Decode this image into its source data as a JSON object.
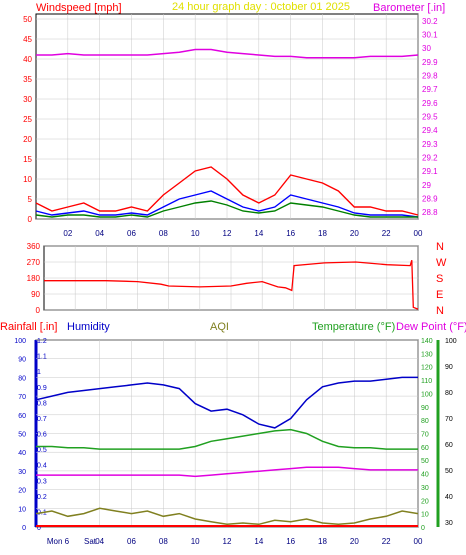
{
  "title": "24 hour graph day : 0ctober 01 2025",
  "colors": {
    "background": "#ffffff",
    "grid": "#c8c8c8",
    "wind": "#ff0000",
    "gust_avg": "#0000ff",
    "wind_avg": "#008000",
    "barometer": "#e000e0",
    "direction": "#ff0000",
    "rain": "#ff0000",
    "humidity": "#0000c8",
    "aqi": "#808020",
    "temperature": "#20a020",
    "dewpoint": "#e000e0",
    "title": "#e0e000",
    "axis_blue": "#0000c8"
  },
  "chart_data": [
    {
      "type": "line",
      "panel": "wind-barometer",
      "title": "24 hour graph day : 0ctober 01 2025",
      "left_axis_label": "Windspeed [mph]",
      "right_axis_label": "Barometer [.in]",
      "x_ticks": [
        "02",
        "04",
        "06",
        "08",
        "10",
        "12",
        "14",
        "16",
        "18",
        "20",
        "22",
        "00"
      ],
      "xlim": [
        0,
        24
      ],
      "left_ticks": [
        "0",
        "5",
        "10",
        "15",
        "20",
        "25",
        "30",
        "35",
        "40",
        "45",
        "50"
      ],
      "ylim_left": [
        0,
        50
      ],
      "right_ticks": [
        "28.8",
        "28.9",
        "29",
        "29.1",
        "29.2",
        "29.3",
        "29.4",
        "29.5",
        "29.6",
        "29.7",
        "29.8",
        "29.9",
        "30",
        "30.1",
        "30.2"
      ],
      "ylim_right": [
        28.75,
        30.25
      ],
      "grid": true,
      "x": [
        0,
        1,
        2,
        3,
        4,
        5,
        6,
        7,
        8,
        9,
        10,
        11,
        12,
        13,
        14,
        15,
        16,
        17,
        18,
        19,
        20,
        21,
        22,
        23,
        24
      ],
      "series": [
        {
          "key": "gust",
          "values": [
            4,
            2,
            3,
            4,
            2,
            2,
            3,
            2,
            6,
            9,
            12,
            13,
            10,
            6,
            4,
            6,
            11,
            10,
            9,
            7,
            3,
            3,
            2,
            2,
            1
          ]
        },
        {
          "key": "avg",
          "values": [
            2,
            1,
            1.5,
            2,
            1,
            1,
            1.5,
            1,
            3,
            5,
            6,
            7,
            5,
            3,
            2,
            3,
            6,
            5,
            4,
            3,
            1.5,
            1,
            1,
            1,
            0.5
          ]
        },
        {
          "key": "low",
          "values": [
            1,
            0.5,
            1,
            1,
            0.5,
            0.5,
            1,
            0.5,
            2,
            3,
            4,
            4.5,
            3.5,
            2,
            1.5,
            2,
            4,
            3.5,
            3,
            2,
            1,
            0.5,
            0.5,
            0.5,
            0.5
          ]
        },
        {
          "key": "barometer",
          "values": [
            29.95,
            29.95,
            29.96,
            29.95,
            29.95,
            29.95,
            29.95,
            29.95,
            29.96,
            29.97,
            29.99,
            29.99,
            29.97,
            29.96,
            29.95,
            29.94,
            29.94,
            29.93,
            29.93,
            29.93,
            29.93,
            29.94,
            29.94,
            29.94,
            29.95
          ]
        }
      ]
    },
    {
      "type": "line",
      "panel": "wind-direction",
      "x_ticks": [
        "02",
        "04",
        "06",
        "08",
        "10",
        "12",
        "14",
        "16",
        "18",
        "20",
        "22",
        "00"
      ],
      "xlim": [
        0,
        24
      ],
      "left_ticks": [
        "0",
        "90",
        "180",
        "270",
        "360"
      ],
      "ylim": [
        0,
        360
      ],
      "right_labels": [
        "N",
        "W",
        "S",
        "E",
        "N"
      ],
      "grid": true,
      "x": [
        0,
        2,
        4,
        6,
        7.5,
        8,
        10,
        12,
        13,
        14,
        15,
        15.5,
        15.9,
        16.05,
        18,
        20,
        22,
        23.5,
        23.6,
        23.7,
        24
      ],
      "values": [
        165,
        165,
        165,
        160,
        145,
        135,
        130,
        135,
        150,
        160,
        130,
        125,
        110,
        250,
        265,
        270,
        255,
        250,
        280,
        15,
        5
      ]
    },
    {
      "type": "line",
      "panel": "rain-humidity-aqi-temp",
      "labels": {
        "rainfall": "Rainfall [.in]",
        "humidity": "Humidity",
        "aqi": "AQI",
        "temperature": "Temperature (°F)",
        "dewpoint": "Dew Point (°F)"
      },
      "x_ticks": [
        "Mon 6",
        "Sat",
        "04",
        "06",
        "08",
        "10",
        "12",
        "14",
        "16",
        "18",
        "20",
        "22",
        "00"
      ],
      "xlim": [
        0,
        24
      ],
      "humidity_ticks": [
        "0",
        "10",
        "20",
        "30",
        "40",
        "50",
        "60",
        "70",
        "80",
        "90",
        "100"
      ],
      "ylim_humidity": [
        0,
        100
      ],
      "rain_ticks": [
        "0",
        "0.1",
        "0.2",
        "0.3",
        "0.4",
        "0.5",
        "0.6",
        "0.7",
        "0.8",
        "0.9",
        "1",
        "1.1",
        "1.2"
      ],
      "ylim_rain": [
        0,
        1.2
      ],
      "aqi_ticks": [
        "0",
        "10",
        "20",
        "30",
        "40",
        "50",
        "60",
        "70",
        "80",
        "90",
        "100",
        "110",
        "120",
        "130",
        "140"
      ],
      "ylim_aqi": [
        0,
        140
      ],
      "temp_ticks": [
        "30",
        "40",
        "50",
        "60",
        "70",
        "80",
        "90",
        "100"
      ],
      "ylim_temp": [
        28,
        100
      ],
      "grid": true,
      "x": [
        0,
        1,
        2,
        3,
        4,
        5,
        6,
        7,
        8,
        9,
        10,
        11,
        12,
        13,
        14,
        15,
        16,
        17,
        18,
        19,
        20,
        21,
        22,
        23,
        24
      ],
      "series": [
        {
          "key": "humidity",
          "values": [
            68,
            70,
            72,
            73,
            74,
            75,
            76,
            77,
            76,
            74,
            66,
            62,
            63,
            60,
            55,
            53,
            58,
            68,
            75,
            77,
            78,
            78,
            79,
            80,
            80
          ]
        },
        {
          "key": "aqi",
          "values": [
            10,
            12,
            8,
            10,
            14,
            12,
            10,
            12,
            8,
            10,
            6,
            4,
            2,
            3,
            2,
            5,
            4,
            6,
            3,
            2,
            3,
            6,
            8,
            12,
            10
          ]
        },
        {
          "key": "temperature",
          "values": [
            59,
            59,
            58.5,
            58.5,
            58,
            58,
            58,
            58,
            58,
            58,
            59,
            61,
            62,
            63,
            64,
            65,
            65.5,
            64,
            61,
            59,
            58.5,
            58.5,
            58,
            58,
            58
          ]
        },
        {
          "key": "dewpoint",
          "values": [
            48,
            48,
            48,
            48,
            48,
            48,
            48,
            48,
            48,
            48,
            47.5,
            48,
            48.5,
            49,
            49.5,
            50,
            50.5,
            51,
            51,
            51,
            50.5,
            50,
            50,
            50,
            50
          ]
        },
        {
          "key": "rainfall",
          "values": [
            0,
            0,
            0,
            0,
            0,
            0,
            0,
            0,
            0,
            0,
            0,
            0,
            0,
            0,
            0,
            0,
            0,
            0,
            0,
            0,
            0,
            0,
            0,
            0,
            0
          ]
        }
      ]
    }
  ]
}
